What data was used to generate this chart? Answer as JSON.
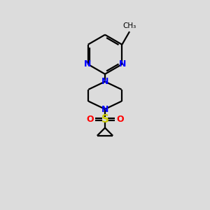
{
  "background_color": "#dcdcdc",
  "bond_color": "#000000",
  "nitrogen_color": "#0000ff",
  "sulfur_color": "#cccc00",
  "oxygen_color": "#ff0000",
  "line_width": 1.6,
  "figsize": [
    3.0,
    3.0
  ],
  "dpi": 100,
  "xlim": [
    0,
    10
  ],
  "ylim": [
    0,
    11
  ]
}
